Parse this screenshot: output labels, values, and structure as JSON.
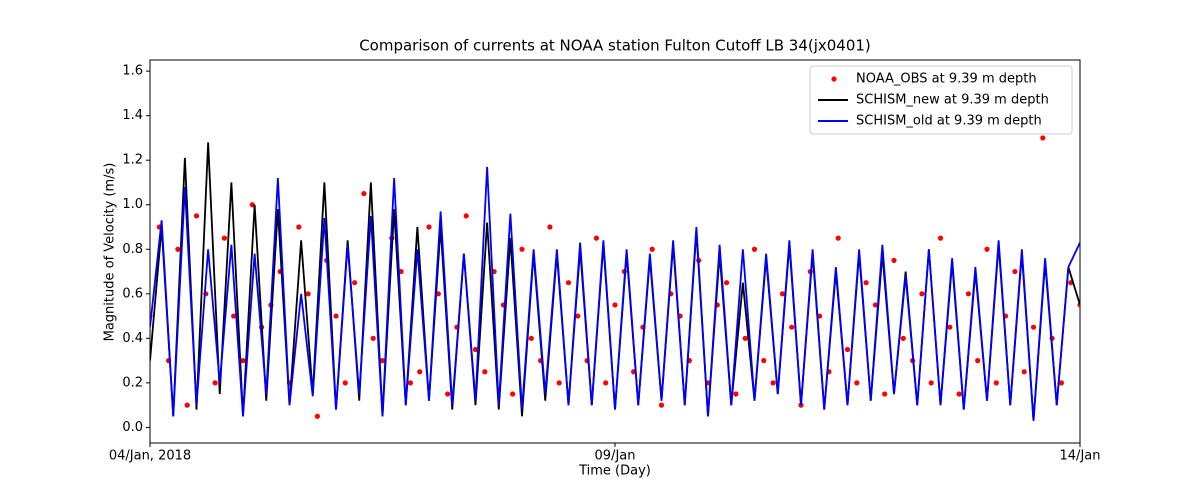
{
  "chart_data": {
    "type": "line",
    "title": "Comparison of currents at NOAA station Fulton Cutoff LB 34(jx0401)",
    "xlabel": "Time (Day)",
    "ylabel": "Magnitude of Velocity (m/s)",
    "xlim": [
      0,
      10
    ],
    "xticks": [
      {
        "value": 0,
        "label": "04/Jan, 2018"
      },
      {
        "value": 5,
        "label": "09/Jan"
      },
      {
        "value": 10,
        "label": "14/Jan"
      }
    ],
    "ylim": [
      -0.07,
      1.65
    ],
    "yticks": [
      {
        "value": 0,
        "label": "0.0"
      },
      0.2,
      0.4,
      0.6,
      0.8,
      {
        "value": 1,
        "label": "1.0"
      },
      1.2,
      1.4,
      1.6
    ],
    "grid": false,
    "legend": "upper right",
    "x": [
      0,
      0.125,
      0.25,
      0.375,
      0.5,
      0.625,
      0.75,
      0.875,
      1,
      1.125,
      1.25,
      1.375,
      1.5,
      1.625,
      1.75,
      1.875,
      2,
      2.125,
      2.25,
      2.375,
      2.5,
      2.625,
      2.75,
      2.875,
      3,
      3.125,
      3.25,
      3.375,
      3.5,
      3.625,
      3.75,
      3.875,
      4,
      4.125,
      4.25,
      4.375,
      4.5,
      4.625,
      4.75,
      4.875,
      5,
      5.125,
      5.25,
      5.375,
      5.5,
      5.625,
      5.75,
      5.875,
      6,
      6.125,
      6.25,
      6.375,
      6.5,
      6.625,
      6.75,
      6.875,
      7,
      7.125,
      7.25,
      7.375,
      7.5,
      7.625,
      7.75,
      7.875,
      8,
      8.125,
      8.25,
      8.375,
      8.5,
      8.625,
      8.75,
      8.875,
      9,
      9.125,
      9.25,
      9.375,
      9.5,
      9.625,
      9.75,
      9.875,
      10
    ],
    "series": [
      {
        "name": "NOAA_OBS at 9.39 m depth",
        "color": "#ff0000",
        "marker": "point",
        "x": [
          0,
          0.1,
          0.2,
          0.3,
          0.4,
          0.5,
          0.6,
          0.7,
          0.8,
          0.9,
          1,
          1.1,
          1.2,
          1.3,
          1.4,
          1.5,
          1.6,
          1.7,
          1.8,
          1.9,
          2,
          2.1,
          2.2,
          2.3,
          2.4,
          2.5,
          2.6,
          2.7,
          2.8,
          2.9,
          3,
          3.1,
          3.2,
          3.3,
          3.4,
          3.5,
          3.6,
          3.7,
          3.8,
          3.9,
          4,
          4.1,
          4.2,
          4.3,
          4.4,
          4.5,
          4.6,
          4.7,
          4.8,
          4.9,
          5,
          5.1,
          5.2,
          5.3,
          5.4,
          5.5,
          5.6,
          5.7,
          5.8,
          5.9,
          6,
          6.1,
          6.2,
          6.3,
          6.4,
          6.5,
          6.6,
          6.7,
          6.8,
          6.9,
          7,
          7.1,
          7.2,
          7.3,
          7.4,
          7.5,
          7.6,
          7.7,
          7.8,
          7.9,
          8,
          8.1,
          8.2,
          8.3,
          8.4,
          8.5,
          8.6,
          8.7,
          8.8,
          8.9,
          9,
          9.1,
          9.2,
          9.3,
          9.4,
          9.5,
          9.6,
          9.7,
          9.8,
          9.9,
          10
        ],
        "values": [
          0.5,
          0.9,
          0.3,
          0.8,
          0.1,
          0.95,
          0.6,
          0.2,
          0.85,
          0.5,
          0.3,
          1.0,
          0.45,
          0.55,
          0.7,
          0.2,
          0.9,
          0.6,
          0.05,
          0.75,
          0.5,
          0.2,
          0.65,
          1.05,
          0.4,
          0.3,
          0.85,
          0.7,
          0.2,
          0.25,
          0.9,
          0.6,
          0.15,
          0.45,
          0.95,
          0.35,
          0.25,
          0.7,
          0.55,
          0.15,
          0.8,
          0.4,
          0.3,
          0.9,
          0.2,
          0.65,
          0.5,
          0.3,
          0.85,
          0.2,
          0.55,
          0.7,
          0.25,
          0.45,
          0.8,
          0.1,
          0.6,
          0.5,
          0.3,
          0.75,
          0.2,
          0.55,
          0.65,
          0.15,
          0.4,
          0.8,
          0.3,
          0.2,
          0.6,
          0.45,
          0.1,
          0.7,
          0.5,
          0.25,
          0.85,
          0.35,
          0.2,
          0.65,
          0.55,
          0.15,
          0.75,
          0.4,
          0.3,
          0.6,
          0.2,
          0.85,
          0.45,
          0.15,
          0.6,
          0.3,
          0.8,
          0.2,
          0.5,
          0.7,
          0.25,
          0.45,
          1.3,
          0.4,
          0.2,
          0.65,
          0.55
        ]
      },
      {
        "name": "SCHISM_new at 9.39 m depth",
        "color": "#000000",
        "marker": "line",
        "values": [
          0.3,
          0.9,
          0.05,
          1.21,
          0.08,
          1.28,
          0.15,
          1.1,
          0.05,
          1.0,
          0.12,
          0.98,
          0.1,
          0.84,
          0.15,
          1.1,
          0.08,
          0.84,
          0.12,
          1.1,
          0.05,
          0.98,
          0.1,
          0.9,
          0.12,
          0.9,
          0.08,
          0.78,
          0.1,
          0.92,
          0.08,
          0.85,
          0.05,
          0.78,
          0.12,
          0.78,
          0.1,
          0.8,
          0.1,
          0.82,
          0.08,
          0.78,
          0.1,
          0.76,
          0.12,
          0.82,
          0.1,
          0.88,
          0.05,
          0.78,
          0.1,
          0.65,
          0.12,
          0.76,
          0.15,
          0.82,
          0.1,
          0.78,
          0.08,
          0.7,
          0.1,
          0.78,
          0.12,
          0.78,
          0.15,
          0.7,
          0.1,
          0.8,
          0.1,
          0.74,
          0.08,
          0.7,
          0.12,
          0.82,
          0.1,
          0.78,
          0.03,
          0.74,
          0.1,
          0.72,
          0.55
        ]
      },
      {
        "name": "SCHISM_old at 9.39 m depth",
        "color": "#0000ff",
        "marker": "line",
        "values": [
          0.45,
          0.93,
          0.05,
          1.08,
          0.1,
          0.8,
          0.2,
          0.82,
          0.05,
          0.78,
          0.15,
          1.12,
          0.1,
          0.6,
          0.14,
          0.94,
          0.08,
          0.82,
          0.15,
          0.95,
          0.05,
          1.12,
          0.1,
          0.8,
          0.12,
          0.97,
          0.1,
          0.78,
          0.12,
          1.17,
          0.1,
          0.96,
          0.08,
          0.8,
          0.15,
          0.8,
          0.1,
          0.83,
          0.1,
          0.84,
          0.08,
          0.8,
          0.1,
          0.78,
          0.12,
          0.84,
          0.1,
          0.9,
          0.05,
          0.82,
          0.1,
          0.8,
          0.12,
          0.78,
          0.15,
          0.84,
          0.1,
          0.8,
          0.08,
          0.72,
          0.1,
          0.8,
          0.12,
          0.82,
          0.15,
          0.68,
          0.1,
          0.8,
          0.1,
          0.76,
          0.08,
          0.72,
          0.12,
          0.84,
          0.1,
          0.8,
          0.03,
          0.76,
          0.1,
          0.72,
          0.83
        ]
      }
    ]
  }
}
